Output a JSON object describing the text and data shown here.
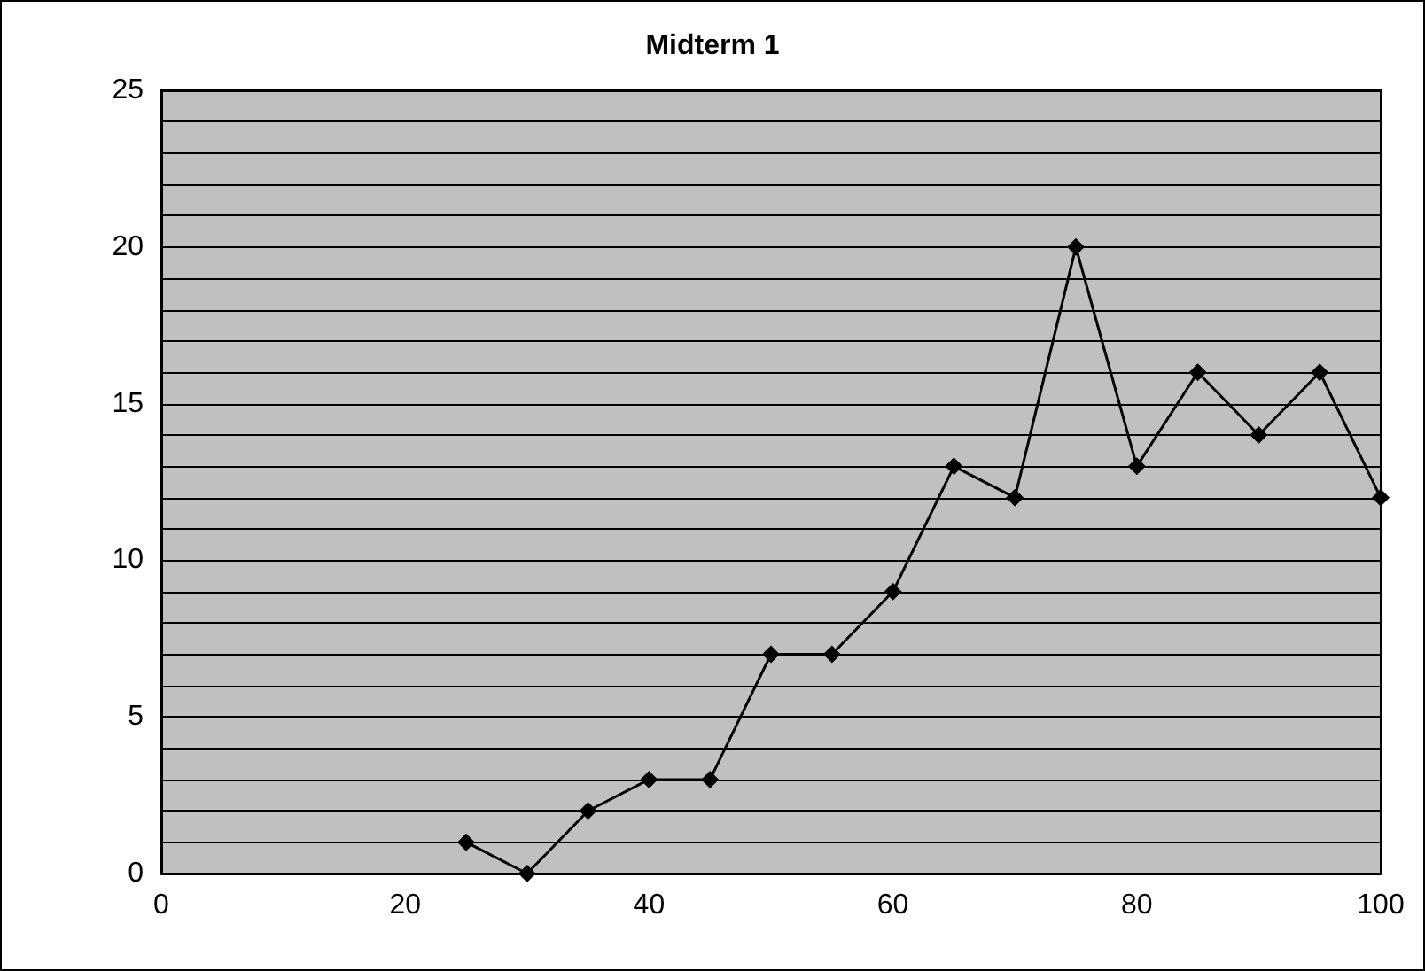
{
  "chart_data": {
    "type": "line",
    "title": "Midterm 1",
    "x": [
      25,
      30,
      35,
      40,
      45,
      50,
      55,
      60,
      65,
      70,
      75,
      80,
      85,
      90,
      95,
      100
    ],
    "series": [
      {
        "color": "#000000",
        "values": [
          1,
          0,
          2,
          3,
          3,
          7,
          7,
          9,
          13,
          12,
          20,
          13,
          16,
          14,
          16,
          12
        ]
      }
    ],
    "xlim": [
      0,
      100
    ],
    "xticks": [
      0,
      20,
      40,
      60,
      80,
      100
    ],
    "ylim": [
      0,
      25
    ],
    "yticks": [
      0,
      {
        "value": 1,
        "label": null
      },
      {
        "value": 2,
        "label": null
      },
      {
        "value": 3,
        "label": null
      },
      {
        "value": 4,
        "label": null
      },
      5,
      {
        "value": 6,
        "label": null
      },
      {
        "value": 7,
        "label": null
      },
      {
        "value": 8,
        "label": null
      },
      {
        "value": 9,
        "label": null
      },
      10,
      {
        "value": 11,
        "label": null
      },
      {
        "value": 12,
        "label": null
      },
      {
        "value": 13,
        "label": null
      },
      {
        "value": 14,
        "label": null
      },
      15,
      {
        "value": 16,
        "label": null
      },
      {
        "value": 17,
        "label": null
      },
      {
        "value": 18,
        "label": null
      },
      {
        "value": 19,
        "label": null
      },
      20,
      {
        "value": 21,
        "label": null
      },
      {
        "value": 22,
        "label": null
      },
      {
        "value": 23,
        "label": null
      },
      {
        "value": 24,
        "label": null
      },
      25
    ],
    "grid": "y",
    "marker": "diamond",
    "line_style": "solid"
  }
}
